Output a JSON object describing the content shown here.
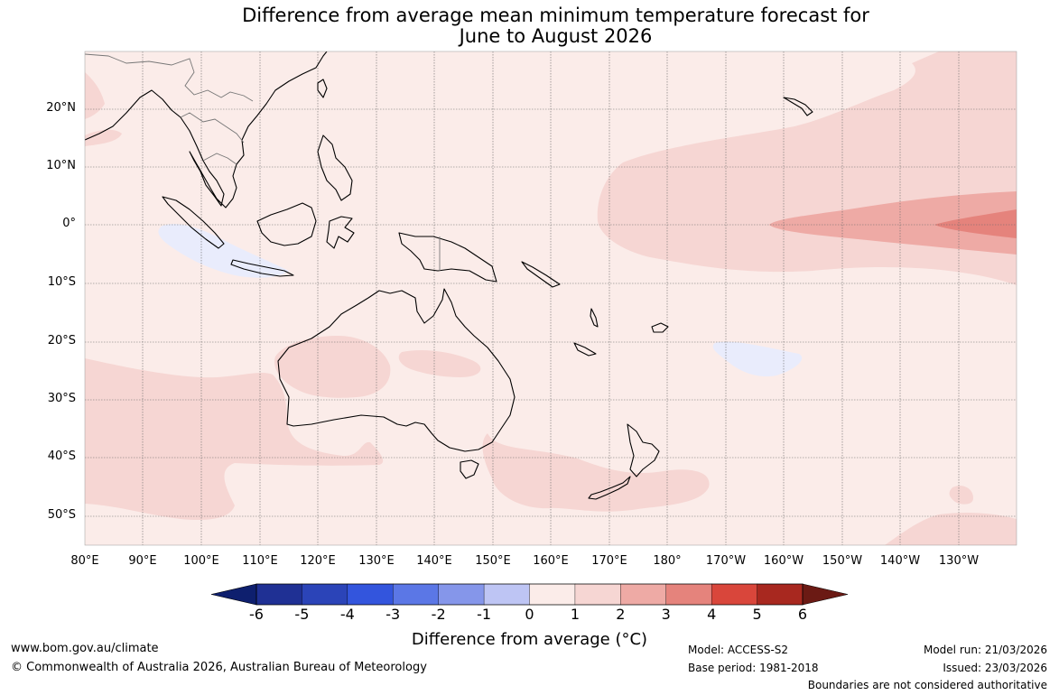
{
  "title": {
    "line1": "Difference from average mean minimum temperature forecast for",
    "line2": "June to August 2026"
  },
  "map": {
    "lat_labels": [
      "20°N",
      "10°N",
      "0°",
      "10°S",
      "20°S",
      "30°S",
      "40°S",
      "50°S"
    ],
    "lon_labels": [
      "80°E",
      "90°E",
      "100°E",
      "110°E",
      "120°E",
      "130°E",
      "140°E",
      "150°E",
      "160°E",
      "170°E",
      "180°",
      "170°W",
      "160°W",
      "150°W",
      "140°W",
      "130°W"
    ],
    "background_color": "#fbece9"
  },
  "colorbar": {
    "ticks": [
      "-6",
      "-5",
      "-4",
      "-3",
      "-2",
      "-1",
      "0",
      "1",
      "2",
      "3",
      "4",
      "5",
      "6"
    ],
    "colors": [
      "#1f3094",
      "#2b44b8",
      "#3355dd",
      "#5b77e6",
      "#8596ea",
      "#bec5f4",
      "#e9ecfc",
      "#fbece9",
      "#f6d6d3",
      "#eeaaa5",
      "#e5837c",
      "#d9463b",
      "#a8281f"
    ],
    "end_low": "#0e1f6e",
    "end_high": "#6b1a14",
    "label": "Difference from average (°C)"
  },
  "footer": {
    "website": "www.bom.gov.au/climate",
    "copyright": "© Commonwealth of Australia 2026, Australian Bureau of Meteorology",
    "model": "Model: ACCESS-S2",
    "base_period": "Base period: 1981-2018",
    "model_run": "Model run: 21/03/2026",
    "issued": "Issued: 23/03/2026",
    "disclaimer": "Boundaries are not considered authoritative"
  }
}
